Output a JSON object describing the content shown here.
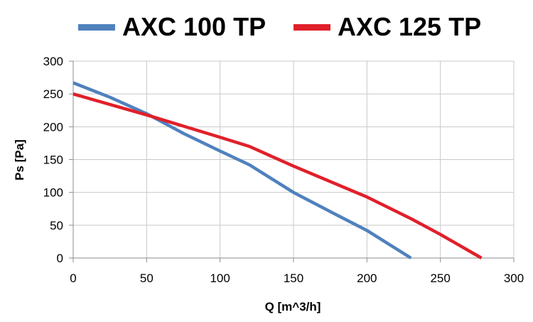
{
  "chart_data": {
    "type": "line",
    "xlabel": "Q [m^3/h]",
    "ylabel": "Ps [Pa]",
    "xlim": [
      0,
      300
    ],
    "ylim": [
      0,
      300
    ],
    "xticks": [
      "0",
      "50",
      "100",
      "150",
      "200",
      "250",
      "300"
    ],
    "yticks": [
      "0",
      "50",
      "100",
      "150",
      "200",
      "250",
      "300"
    ],
    "grid": true,
    "legend": "top",
    "series": [
      {
        "name": "AXC 100 TP",
        "color": "#4f81bd",
        "points": [
          [
            0,
            267
          ],
          [
            25,
            245
          ],
          [
            50,
            220
          ],
          [
            75,
            190
          ],
          [
            100,
            163
          ],
          [
            120,
            142
          ],
          [
            150,
            100
          ],
          [
            180,
            65
          ],
          [
            200,
            42
          ],
          [
            230,
            0
          ]
        ]
      },
      {
        "name": "AXC 125 TP",
        "color": "#e0202a",
        "points": [
          [
            0,
            250
          ],
          [
            50,
            218
          ],
          [
            100,
            184
          ],
          [
            120,
            170
          ],
          [
            150,
            140
          ],
          [
            200,
            93
          ],
          [
            230,
            60
          ],
          [
            250,
            36
          ],
          [
            278,
            0
          ]
        ]
      }
    ]
  }
}
